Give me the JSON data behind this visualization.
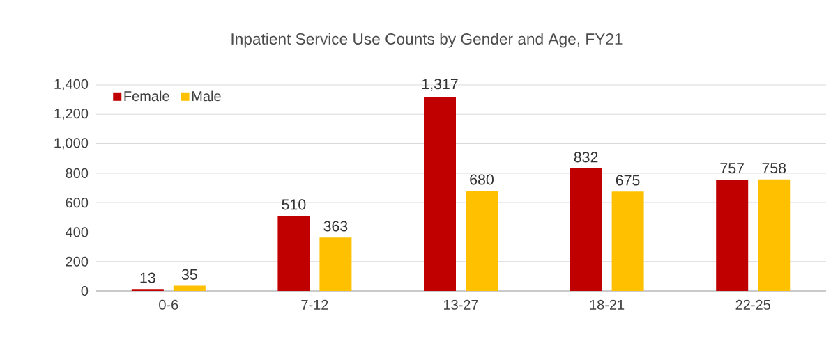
{
  "chart_data": {
    "type": "bar",
    "title": "Inpatient Service Use Counts by Gender and Age, FY21",
    "categories": [
      "0-6",
      "7-12",
      "13-27",
      "18-21",
      "22-25"
    ],
    "series": [
      {
        "name": "Female",
        "color": "#c00000",
        "values": [
          13,
          510,
          1317,
          832,
          757
        ],
        "value_labels": [
          "13",
          "510",
          "1,317",
          "832",
          "757"
        ]
      },
      {
        "name": "Male",
        "color": "#ffc000",
        "values": [
          35,
          363,
          680,
          675,
          758
        ],
        "value_labels": [
          "35",
          "363",
          "680",
          "675",
          "758"
        ]
      }
    ],
    "ylim": [
      0,
      1400
    ],
    "yticks": [
      0,
      200,
      400,
      600,
      800,
      {
        "value": 1000,
        "label": "1,000"
      },
      {
        "value": 1200,
        "label": "1,200"
      },
      {
        "value": 1400,
        "label": "1,400"
      }
    ],
    "grid": "y",
    "legend": "top left"
  }
}
